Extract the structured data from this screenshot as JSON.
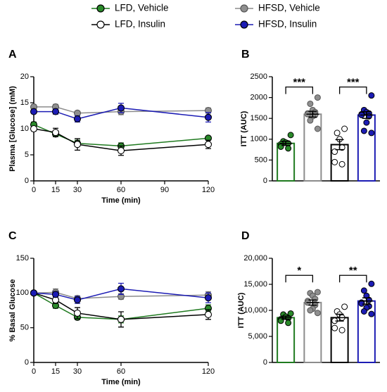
{
  "legend": [
    {
      "name": "LFD, Vehicle",
      "color": "#1f7a1f",
      "fill": "#2a8a2a"
    },
    {
      "name": "HFSD, Vehicle",
      "color": "#8c8c8c",
      "fill": "#8f8f8f"
    },
    {
      "name": "LFD, Insulin",
      "color": "#000000",
      "fill": "#ffffff"
    },
    {
      "name": "HFSD, Insulin",
      "color": "#1c1cb4",
      "fill": "#1c1cb4"
    }
  ],
  "chart_data": [
    {
      "type": "line",
      "label": "A",
      "ylabel": "Plasma [Glucose] (mM)",
      "xlabel": "Time (min)",
      "x": [
        0,
        15,
        30,
        60,
        120
      ],
      "xlim": [
        0,
        120
      ],
      "xticks": [
        0,
        15,
        30,
        60,
        90,
        120
      ],
      "ylim": [
        0,
        20
      ],
      "yticks": [
        0,
        5,
        10,
        15,
        20
      ],
      "series": [
        {
          "values": [
            10.8,
            9.0,
            7.2,
            6.7,
            8.2
          ],
          "errors": [
            0.5,
            0.5,
            0.6,
            0.6,
            0.3
          ]
        },
        {
          "values": [
            14.2,
            14.2,
            13.0,
            13.3,
            13.5
          ],
          "errors": [
            0.4,
            0.5,
            0.4,
            0.6,
            0.5
          ]
        },
        {
          "values": [
            10.0,
            9.3,
            7.0,
            5.8,
            7.0
          ],
          "errors": [
            0.4,
            0.8,
            1.1,
            0.9,
            0.8
          ]
        },
        {
          "values": [
            13.3,
            13.3,
            11.9,
            14.0,
            12.2
          ],
          "errors": [
            0.3,
            0.5,
            0.6,
            0.9,
            0.9
          ]
        }
      ]
    },
    {
      "type": "bar",
      "label": "B",
      "ylabel": "ITT (AUC)",
      "ylim": [
        0,
        2500
      ],
      "yticks": [
        0,
        500,
        1000,
        1500,
        2000,
        2500
      ],
      "values": [
        900,
        1600,
        870,
        1580
      ],
      "errors": [
        50,
        70,
        120,
        80
      ],
      "points": [
        [
          1100,
          950,
          920,
          900,
          880,
          820,
          780
        ],
        [
          2000,
          1850,
          1700,
          1650,
          1620,
          1600,
          1580,
          1550,
          1450,
          1250
        ],
        [
          1250,
          1150,
          1000,
          800,
          700,
          450,
          400
        ],
        [
          2050,
          1700,
          1650,
          1620,
          1600,
          1580,
          1550,
          1400,
          1200,
          1150
        ]
      ],
      "annotations": [
        {
          "text": "***",
          "from": 0,
          "to": 1
        },
        {
          "text": "***",
          "from": 2,
          "to": 3
        }
      ]
    },
    {
      "type": "line",
      "label": "C",
      "ylabel": "% Basal Glucose",
      "xlabel": "Time (min)",
      "x": [
        0,
        15,
        30,
        60,
        120
      ],
      "xlim": [
        0,
        120
      ],
      "xticks": [
        0,
        15,
        30,
        60,
        120
      ],
      "ylim": [
        0,
        150
      ],
      "yticks": [
        0,
        50,
        100,
        150
      ],
      "series": [
        {
          "values": [
            100,
            82,
            65,
            62,
            78
          ],
          "errors": [
            0,
            4,
            3,
            5,
            5
          ]
        },
        {
          "values": [
            100,
            101,
            92,
            95,
            97
          ],
          "errors": [
            0,
            5,
            4,
            4,
            5
          ]
        },
        {
          "values": [
            100,
            90,
            71,
            62,
            69
          ],
          "errors": [
            0,
            5,
            8,
            11,
            7
          ]
        },
        {
          "values": [
            100,
            98,
            90,
            106,
            93
          ],
          "errors": [
            0,
            4,
            5,
            8,
            7
          ]
        }
      ]
    },
    {
      "type": "bar",
      "label": "D",
      "ylabel": "ITT (AUC)",
      "ylim": [
        0,
        20000
      ],
      "yticks": [
        0,
        {
          "value": 5000,
          "label": "5,000"
        },
        {
          "value": 10000,
          "label": "10,000"
        },
        {
          "value": 15000,
          "label": "15,000"
        },
        {
          "value": 20000,
          "label": "20,000"
        }
      ],
      "values": [
        8600,
        11500,
        8600,
        11800
      ],
      "errors": [
        300,
        500,
        650,
        600
      ],
      "points": [
        [
          9400,
          9200,
          8800,
          8500,
          8300,
          8000,
          7600
        ],
        [
          13500,
          13300,
          12800,
          12200,
          11800,
          11500,
          11000,
          10300,
          10000,
          9500
        ],
        [
          10700,
          9800,
          9200,
          8600,
          8000,
          6600,
          6200
        ],
        [
          15100,
          13800,
          12800,
          12000,
          11500,
          11300,
          10800,
          10500,
          9800,
          9300
        ]
      ],
      "annotations": [
        {
          "text": "*",
          "from": 0,
          "to": 1
        },
        {
          "text": "**",
          "from": 2,
          "to": 3
        }
      ]
    }
  ]
}
